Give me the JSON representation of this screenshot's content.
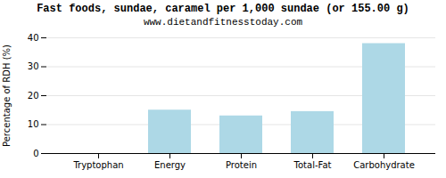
{
  "chart_data": {
    "type": "bar",
    "title": "Fast foods, sundae, caramel per 1,000 sundae (or 155.00 g)",
    "subtitle": "www.dietandfitnesstoday.com",
    "categories": [
      "Tryptophan",
      "Energy",
      "Protein",
      "Total-Fat",
      "Carbohydrate"
    ],
    "values": [
      0,
      15,
      13,
      14.5,
      38
    ],
    "color": "#add8e6",
    "ylabel": "Percentage of RDH (%)",
    "ylim": [
      0,
      40
    ],
    "yticks": [
      0,
      10,
      20,
      30,
      40
    ],
    "grid": true
  }
}
